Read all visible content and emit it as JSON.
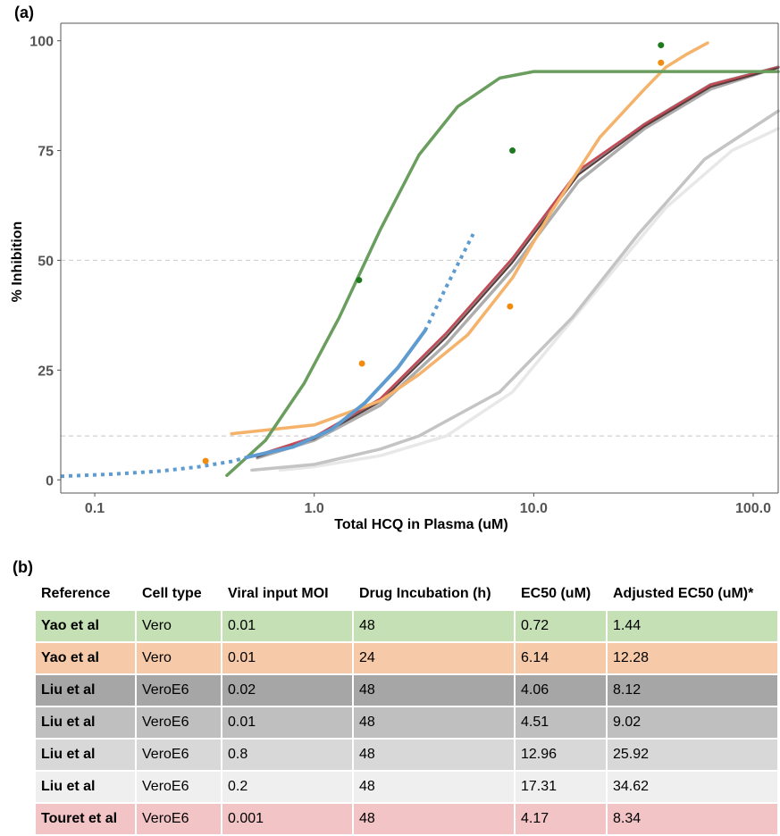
{
  "panel_a_label": "(a)",
  "panel_b_label": "(b)",
  "chart_data": {
    "type": "line",
    "xlabel": "Total HCQ in Plasma (uM)",
    "ylabel": "% Inhibition",
    "xscale": "log",
    "xlim": [
      0.07,
      130
    ],
    "ylim": [
      -3,
      104
    ],
    "xticks": [
      {
        "value": 0.1,
        "label": "0.1"
      },
      {
        "value": 1,
        "label": "1.0"
      },
      {
        "value": 10,
        "label": "10.0"
      },
      {
        "value": 100,
        "label": "100.0"
      }
    ],
    "yticks": [
      {
        "value": 0,
        "label": "0"
      },
      {
        "value": 25,
        "label": "25"
      },
      {
        "value": 50,
        "label": "50"
      },
      {
        "value": 75,
        "label": "75"
      },
      {
        "value": 100,
        "label": "100"
      }
    ],
    "reference_lines": [
      {
        "y": 50,
        "color": "#d0d0d0",
        "dash": true
      },
      {
        "y": 10,
        "color": "#d0d0d0",
        "dash": true
      }
    ],
    "series": [
      {
        "color": "#e8e8e8",
        "width": 3.5,
        "points": [
          [
            0.7,
            2.2
          ],
          [
            1.0,
            3
          ],
          [
            2,
            5.5
          ],
          [
            4,
            10
          ],
          [
            8,
            20
          ],
          [
            20,
            44
          ],
          [
            40,
            62
          ],
          [
            80,
            75
          ],
          [
            130,
            80
          ]
        ]
      },
      {
        "color": "#c4c4c4",
        "width": 3.5,
        "points": [
          [
            0.52,
            2.2
          ],
          [
            1.0,
            3.5
          ],
          [
            2,
            7
          ],
          [
            3,
            10
          ],
          [
            7,
            20
          ],
          [
            15,
            37
          ],
          [
            30,
            56
          ],
          [
            60,
            73
          ],
          [
            130,
            84
          ]
        ]
      },
      {
        "color": "#adadad",
        "width": 3.5,
        "points": [
          [
            0.55,
            5
          ],
          [
            1,
            9
          ],
          [
            2,
            17
          ],
          [
            4,
            31
          ],
          [
            8,
            48
          ],
          [
            16,
            68
          ],
          [
            32,
            80
          ],
          [
            64,
            89
          ],
          [
            130,
            94
          ]
        ]
      },
      {
        "color": "#909090",
        "width": 3.5,
        "points": [
          [
            0.55,
            5.5
          ],
          [
            1,
            9.5
          ],
          [
            2,
            18
          ],
          [
            4,
            33
          ],
          [
            8,
            50
          ],
          [
            16,
            70
          ],
          [
            32,
            81
          ],
          [
            64,
            90
          ],
          [
            130,
            94
          ]
        ]
      },
      {
        "color": "#c44a55",
        "width": 2.5,
        "points": [
          [
            0.55,
            5.6
          ],
          [
            1,
            9.8
          ],
          [
            2,
            18.5
          ],
          [
            4,
            33.5
          ],
          [
            8,
            50.5
          ],
          [
            16,
            70.5
          ],
          [
            32,
            81
          ],
          [
            64,
            90
          ],
          [
            130,
            94
          ]
        ]
      },
      {
        "color": "#5a3c3c",
        "width": 2,
        "points": [
          [
            0.55,
            5.2
          ],
          [
            1,
            9.3
          ],
          [
            2,
            17.8
          ],
          [
            4,
            32.5
          ],
          [
            8,
            49.5
          ],
          [
            16,
            69.5
          ],
          [
            32,
            80.5
          ],
          [
            64,
            89.5
          ],
          [
            130,
            93.8
          ]
        ]
      },
      {
        "color": "#f5b26b",
        "width": 3.5,
        "points": [
          [
            0.42,
            10.5
          ],
          [
            1,
            12.5
          ],
          [
            2,
            18
          ],
          [
            3,
            24
          ],
          [
            5,
            33
          ],
          [
            8,
            46
          ],
          [
            12,
            61
          ],
          [
            20,
            78
          ],
          [
            32,
            89
          ],
          [
            40,
            94
          ],
          [
            50,
            97
          ],
          [
            62,
            99.5
          ]
        ]
      },
      {
        "color": "#6a9e5e",
        "width": 3.5,
        "points": [
          [
            0.4,
            1
          ],
          [
            0.6,
            9
          ],
          [
            0.9,
            22
          ],
          [
            1.3,
            37
          ],
          [
            2,
            57
          ],
          [
            3,
            74
          ],
          [
            4.5,
            85
          ],
          [
            7,
            91.5
          ],
          [
            10,
            93
          ],
          [
            20,
            93
          ],
          [
            60,
            93
          ],
          [
            130,
            93
          ]
        ]
      },
      {
        "color": "#5e9bd0",
        "width": 4,
        "points": [
          [
            0.5,
            5.2
          ],
          [
            0.8,
            7.5
          ],
          [
            1.2,
            11.5
          ],
          [
            1.7,
            17.5
          ],
          [
            2.4,
            25.5
          ],
          [
            3.2,
            34
          ]
        ]
      },
      {
        "color": "#5e9bd0",
        "width": 4,
        "dash": "4 5",
        "points": [
          [
            0.07,
            0.8
          ],
          [
            0.12,
            1.3
          ],
          [
            0.2,
            2
          ],
          [
            0.3,
            3
          ],
          [
            0.42,
            4.2
          ],
          [
            0.5,
            5.2
          ]
        ]
      },
      {
        "color": "#5e9bd0",
        "width": 4,
        "dash": "4 5",
        "points": [
          [
            3.2,
            34
          ],
          [
            4,
            44
          ],
          [
            5.3,
            56
          ]
        ]
      }
    ],
    "scatter": [
      {
        "x": 1.6,
        "y": 45.5,
        "color": "#1e7a1e"
      },
      {
        "x": 8.0,
        "y": 75,
        "color": "#1e7a1e"
      },
      {
        "x": 38,
        "y": 99,
        "color": "#1e7a1e"
      },
      {
        "x": 0.32,
        "y": 4.3,
        "color": "#f28c10"
      },
      {
        "x": 1.65,
        "y": 26.5,
        "color": "#f28c10"
      },
      {
        "x": 7.8,
        "y": 39.5,
        "color": "#f28c10"
      },
      {
        "x": 38,
        "y": 95,
        "color": "#f28c10"
      }
    ]
  },
  "table": {
    "headers": [
      "Reference",
      "Cell type",
      "Viral input MOI",
      "Drug Incubation (h)",
      "EC50 (uM)",
      "Adjusted EC50 (uM)*"
    ],
    "rows": [
      {
        "cells": [
          "Yao et al",
          "Vero",
          "0.01",
          "48",
          "0.72",
          "1.44"
        ],
        "color": "#c4e0b4"
      },
      {
        "cells": [
          "Yao et al",
          "Vero",
          "0.01",
          "24",
          "6.14",
          "12.28"
        ],
        "color": "#f6caa9"
      },
      {
        "cells": [
          "Liu et al",
          "VeroE6",
          "0.02",
          "48",
          "4.06",
          "8.12"
        ],
        "color": "#a6a6a6"
      },
      {
        "cells": [
          "Liu et al",
          "VeroE6",
          "0.01",
          "48",
          "4.51",
          "9.02"
        ],
        "color": "#bfbfbf"
      },
      {
        "cells": [
          "Liu et al",
          "VeroE6",
          "0.8",
          "48",
          "12.96",
          "25.92"
        ],
        "color": "#d8d8d8"
      },
      {
        "cells": [
          "Liu et al",
          "VeroE6",
          "0.2",
          "48",
          "17.31",
          "34.62"
        ],
        "color": "#efefef"
      },
      {
        "cells": [
          "Touret et al",
          "VeroE6",
          "0.001",
          "48",
          "4.17",
          "8.34"
        ],
        "color": "#f2c4c6"
      }
    ]
  }
}
